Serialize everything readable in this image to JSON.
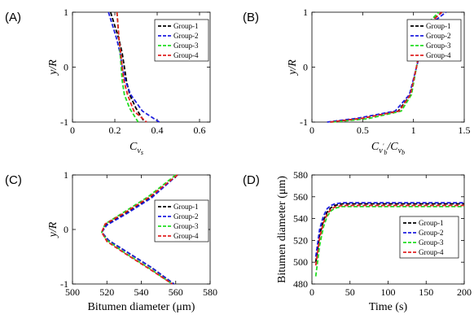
{
  "colors": {
    "group1": "#000000",
    "group2": "#1f1fe0",
    "group3": "#22dd22",
    "group4": "#e02222"
  },
  "legend": [
    "Group-1",
    "Group-2",
    "Group-3",
    "Group-4"
  ],
  "chart_data": [
    {
      "type": "line",
      "panel": "(A)",
      "xlabel": "C_{v_s}",
      "xlabel_main": "C",
      "xlabel_sub": "v",
      "xlabel_subsub": "s",
      "ylabel": "y/R",
      "xlim": [
        0,
        0.65
      ],
      "ylim": [
        -1,
        1
      ],
      "xticks": [
        0,
        0.2,
        0.4,
        0.6
      ],
      "xtick_labels": [
        "0",
        "0.2",
        "0.4",
        "0.6"
      ],
      "yticks": [
        -1,
        0,
        1
      ],
      "ytick_labels": [
        "-1",
        "0",
        "1"
      ],
      "legend_position": "top-right",
      "series": [
        {
          "name": "Group-1",
          "points": [
            [
              0.18,
              1
            ],
            [
              0.2,
              0.75
            ],
            [
              0.22,
              0.5
            ],
            [
              0.235,
              0.25
            ],
            [
              0.245,
              0
            ],
            [
              0.255,
              -0.25
            ],
            [
              0.27,
              -0.5
            ],
            [
              0.3,
              -0.75
            ],
            [
              0.34,
              -1
            ]
          ]
        },
        {
          "name": "Group-2",
          "points": [
            [
              0.17,
              1
            ],
            [
              0.19,
              0.75
            ],
            [
              0.21,
              0.5
            ],
            [
              0.225,
              0.25
            ],
            [
              0.235,
              0
            ],
            [
              0.25,
              -0.25
            ],
            [
              0.275,
              -0.5
            ],
            [
              0.33,
              -0.8
            ],
            [
              0.41,
              -1
            ]
          ]
        },
        {
          "name": "Group-3",
          "points": [
            [
              0.21,
              1
            ],
            [
              0.215,
              0.75
            ],
            [
              0.22,
              0.5
            ],
            [
              0.225,
              0.25
            ],
            [
              0.23,
              0
            ],
            [
              0.235,
              -0.25
            ],
            [
              0.245,
              -0.5
            ],
            [
              0.27,
              -0.75
            ],
            [
              0.31,
              -1
            ]
          ]
        },
        {
          "name": "Group-4",
          "points": [
            [
              0.21,
              1
            ],
            [
              0.215,
              0.75
            ],
            [
              0.22,
              0.5
            ],
            [
              0.228,
              0.25
            ],
            [
              0.235,
              0
            ],
            [
              0.243,
              -0.25
            ],
            [
              0.26,
              -0.5
            ],
            [
              0.29,
              -0.8
            ],
            [
              0.35,
              -1
            ]
          ]
        }
      ]
    },
    {
      "type": "line",
      "panel": "(B)",
      "xlabel": "C_{v'_b}/C_{v_b}",
      "ylabel": "y/R",
      "xlim": [
        0,
        1.5
      ],
      "ylim": [
        -1,
        1
      ],
      "xticks": [
        0,
        0.5,
        1,
        1.5
      ],
      "xtick_labels": [
        "0",
        "0.5",
        "1",
        "1.5"
      ],
      "yticks": [
        -1,
        0,
        1
      ],
      "ytick_labels": [
        "-1",
        "0",
        "1"
      ],
      "legend_position": "top-right",
      "series": [
        {
          "name": "Group-1",
          "points": [
            [
              0.18,
              -1
            ],
            [
              0.5,
              -0.93
            ],
            [
              0.85,
              -0.8
            ],
            [
              0.97,
              -0.5
            ],
            [
              1.03,
              0
            ],
            [
              1.08,
              0.5
            ],
            [
              1.15,
              0.8
            ],
            [
              1.28,
              1
            ]
          ]
        },
        {
          "name": "Group-2",
          "points": [
            [
              0.15,
              -1
            ],
            [
              0.45,
              -0.93
            ],
            [
              0.82,
              -0.8
            ],
            [
              0.96,
              -0.5
            ],
            [
              1.03,
              0
            ],
            [
              1.1,
              0.5
            ],
            [
              1.18,
              0.8
            ],
            [
              1.32,
              1
            ]
          ]
        },
        {
          "name": "Group-3",
          "points": [
            [
              0.2,
              -1
            ],
            [
              0.55,
              -0.94
            ],
            [
              0.88,
              -0.8
            ],
            [
              0.98,
              -0.5
            ],
            [
              1.03,
              0
            ],
            [
              1.07,
              0.5
            ],
            [
              1.14,
              0.8
            ],
            [
              1.25,
              1
            ]
          ]
        },
        {
          "name": "Group-4",
          "points": [
            [
              0.18,
              -1
            ],
            [
              0.5,
              -0.93
            ],
            [
              0.86,
              -0.8
            ],
            [
              0.97,
              -0.5
            ],
            [
              1.03,
              0
            ],
            [
              1.08,
              0.5
            ],
            [
              1.16,
              0.8
            ],
            [
              1.28,
              1
            ]
          ]
        }
      ]
    },
    {
      "type": "line",
      "panel": "(C)",
      "xlabel": "Bitumen diameter (μm)",
      "ylabel": "y/R",
      "xlim": [
        500,
        580
      ],
      "ylim": [
        -1,
        1
      ],
      "xticks": [
        500,
        520,
        540,
        560,
        580
      ],
      "xtick_labels": [
        "500",
        "520",
        "540",
        "560",
        "580"
      ],
      "yticks": [
        -1,
        0,
        1
      ],
      "ytick_labels": [
        "-1",
        "0",
        "1"
      ],
      "legend_position": "right",
      "series": [
        {
          "name": "Group-1",
          "points": [
            [
              561,
              1
            ],
            [
              546,
              0.6
            ],
            [
              531,
              0.3
            ],
            [
              520,
              0.1
            ],
            [
              517,
              -0.05
            ],
            [
              521,
              -0.2
            ],
            [
              531,
              -0.4
            ],
            [
              546,
              -0.7
            ],
            [
              559,
              -1
            ]
          ]
        },
        {
          "name": "Group-2",
          "points": [
            [
              561,
              1
            ],
            [
              546,
              0.58
            ],
            [
              531,
              0.28
            ],
            [
              520,
              0.08
            ],
            [
              517,
              -0.05
            ],
            [
              521,
              -0.2
            ],
            [
              531,
              -0.4
            ],
            [
              546,
              -0.7
            ],
            [
              559,
              -1
            ]
          ]
        },
        {
          "name": "Group-3",
          "points": [
            [
              560,
              1
            ],
            [
              544,
              0.6
            ],
            [
              529,
              0.3
            ],
            [
              519,
              0.1
            ],
            [
              517,
              -0.05
            ],
            [
              520,
              -0.2
            ],
            [
              530,
              -0.42
            ],
            [
              545,
              -0.72
            ],
            [
              558,
              -1
            ]
          ]
        },
        {
          "name": "Group-4",
          "points": [
            [
              561,
              1
            ],
            [
              545,
              0.6
            ],
            [
              530,
              0.3
            ],
            [
              519,
              0.1
            ],
            [
              517,
              -0.05
            ],
            [
              520,
              -0.22
            ],
            [
              530,
              -0.43
            ],
            [
              545,
              -0.73
            ],
            [
              558,
              -1
            ]
          ]
        }
      ]
    },
    {
      "type": "line",
      "panel": "(D)",
      "xlabel": "Time (s)",
      "ylabel": "Bitumen diameter (μm)",
      "xlim": [
        0,
        200
      ],
      "ylim": [
        480,
        580
      ],
      "xticks": [
        0,
        50,
        100,
        150,
        200
      ],
      "xtick_labels": [
        "0",
        "50",
        "100",
        "150",
        "200"
      ],
      "yticks": [
        480,
        500,
        520,
        540,
        560,
        580
      ],
      "ytick_labels": [
        "480",
        "500",
        "520",
        "540",
        "560",
        "580"
      ],
      "legend_position": "bottom-right",
      "series": [
        {
          "name": "Group-1",
          "points": [
            [
              5,
              500
            ],
            [
              10,
              525
            ],
            [
              15,
              538
            ],
            [
              20,
              546
            ],
            [
              25,
              550
            ],
            [
              30,
              552
            ],
            [
              40,
              553.5
            ],
            [
              60,
              553.5
            ],
            [
              200,
              553.5
            ]
          ]
        },
        {
          "name": "Group-2",
          "points": [
            [
              5,
              505
            ],
            [
              10,
              530
            ],
            [
              15,
              542
            ],
            [
              20,
              549
            ],
            [
              25,
              552
            ],
            [
              30,
              553.5
            ],
            [
              40,
              554.5
            ],
            [
              60,
              554.5
            ],
            [
              200,
              554.5
            ]
          ]
        },
        {
          "name": "Group-3",
          "points": [
            [
              5,
              487
            ],
            [
              10,
              515
            ],
            [
              15,
              532
            ],
            [
              20,
              542
            ],
            [
              25,
              547
            ],
            [
              30,
              549.5
            ],
            [
              40,
              551
            ],
            [
              60,
              551
            ],
            [
              200,
              551
            ]
          ]
        },
        {
          "name": "Group-4",
          "points": [
            [
              5,
              497
            ],
            [
              10,
              522
            ],
            [
              15,
              536
            ],
            [
              20,
              544
            ],
            [
              25,
              548.5
            ],
            [
              30,
              550.5
            ],
            [
              40,
              552
            ],
            [
              60,
              552
            ],
            [
              200,
              552
            ]
          ]
        }
      ]
    }
  ]
}
